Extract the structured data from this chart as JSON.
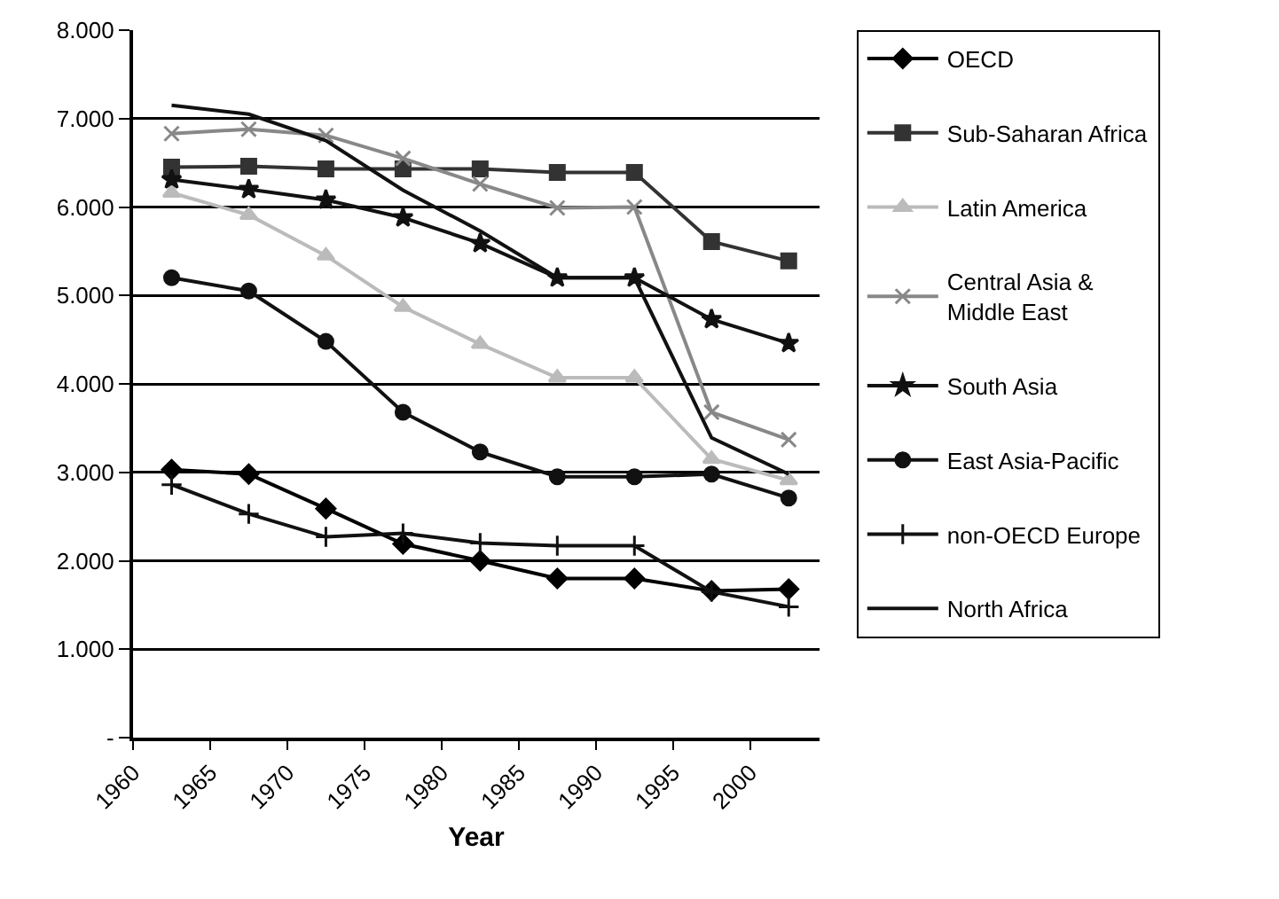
{
  "chart_data": {
    "type": "line",
    "xlabel": "Year",
    "x": [
      1962.5,
      1967.5,
      1972.5,
      1977.5,
      1982.5,
      1987.5,
      1992.5,
      1997.5,
      2002.5
    ],
    "xlim": [
      1960,
      2004.5
    ],
    "xticks": [
      1960,
      1965,
      1970,
      1975,
      1980,
      1985,
      1990,
      1995,
      2000
    ],
    "ylim": [
      0,
      8
    ],
    "yticks": [
      {
        "value": 0,
        "label": "-"
      },
      {
        "value": 1,
        "label": "1.000"
      },
      {
        "value": 2,
        "label": "2.000"
      },
      {
        "value": 3,
        "label": "3.000"
      },
      {
        "value": 4,
        "label": "4.000"
      },
      {
        "value": 5,
        "label": "5.000"
      },
      {
        "value": 6,
        "label": "6.000"
      },
      {
        "value": 7,
        "label": "7.000"
      },
      {
        "value": 8,
        "label": "8.000"
      }
    ],
    "grid": "y",
    "legend": "right",
    "line_style": "solid",
    "series": [
      {
        "name": "OECD",
        "color": "#000000",
        "marker": "diamond",
        "values": [
          3.03,
          2.98,
          2.59,
          2.19,
          2.0,
          1.8,
          1.8,
          1.66,
          1.68
        ]
      },
      {
        "name": "Sub-Saharan Africa",
        "color": "#333333",
        "marker": "square",
        "values": [
          6.45,
          6.46,
          6.43,
          6.43,
          6.43,
          6.39,
          6.39,
          5.61,
          5.39
        ]
      },
      {
        "name": "Latin America",
        "color": "#bbbbbb",
        "marker": "triangle",
        "values": [
          6.16,
          5.91,
          5.45,
          4.87,
          4.45,
          4.07,
          4.07,
          3.15,
          2.91
        ]
      },
      {
        "name": "Central Asia & Middle East",
        "color": "#888888",
        "marker": "x",
        "values": [
          6.83,
          6.88,
          6.81,
          6.55,
          6.26,
          5.99,
          6.0,
          3.68,
          3.37
        ]
      },
      {
        "name": "South Asia",
        "color": "#111111",
        "marker": "star",
        "values": [
          6.31,
          6.2,
          6.08,
          5.88,
          5.59,
          5.2,
          5.2,
          4.73,
          4.46
        ]
      },
      {
        "name": "East Asia-Pacific",
        "color": "#111111",
        "marker": "circle",
        "values": [
          5.2,
          5.05,
          4.48,
          3.68,
          3.23,
          2.95,
          2.95,
          2.98,
          2.71
        ]
      },
      {
        "name": "non-OECD Europe",
        "color": "#111111",
        "marker": "cross",
        "values": [
          2.86,
          2.53,
          2.27,
          2.31,
          2.2,
          2.17,
          2.17,
          1.65,
          1.48
        ]
      },
      {
        "name": "North Africa",
        "color": "#111111",
        "marker": "none",
        "values": [
          7.15,
          7.05,
          6.75,
          6.19,
          5.73,
          5.2,
          5.2,
          3.39,
          2.98
        ]
      }
    ]
  }
}
